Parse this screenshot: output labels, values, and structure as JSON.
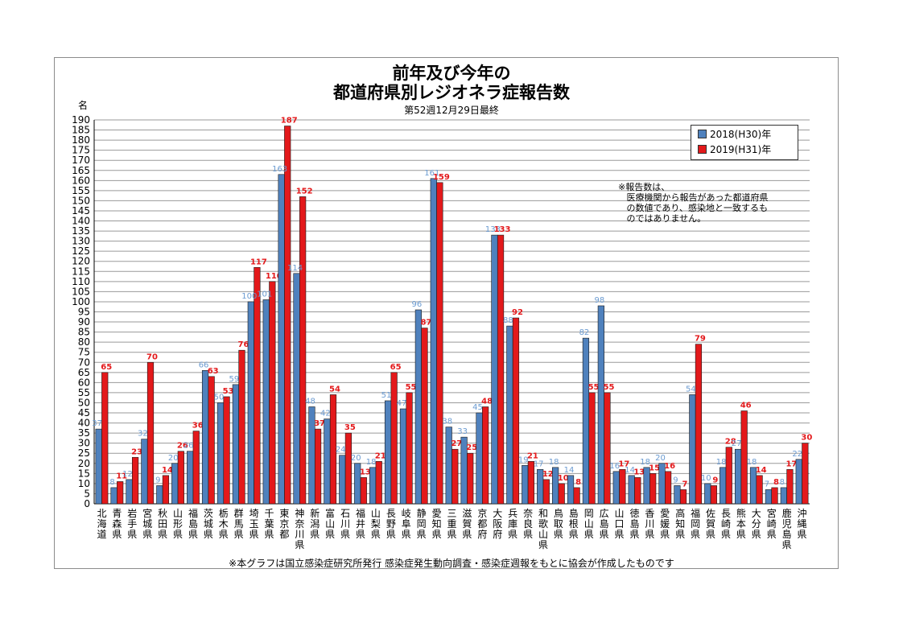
{
  "title_line1": "前年及び今年の",
  "title_line2": "都道府県別レジオネラ症報告数",
  "subtitle": "第52週12月29日最終",
  "unit_label": "名",
  "note": "※報告数は、\n   医療機関から報告があった都道府県\n   の数値であり、感染地と一致するも\n   のではありません。",
  "footer": "※本グラフは国立感染症研究所発行 感染症発生動向調査・感染症週報をもとに協会が作成したものです",
  "colors": {
    "series_2018": "#4f81bd",
    "series_2019": "#e3191b",
    "label_2018": "#6b9bd1",
    "label_2019": "#e3191b"
  },
  "chart_data": {
    "type": "bar",
    "ylim": [
      0,
      190
    ],
    "ytick_step": 5,
    "grid": true,
    "legend_position": "top-right",
    "categories": [
      "北海道",
      "青森県",
      "岩手県",
      "宮城県",
      "秋田県",
      "山形県",
      "福島県",
      "茨城県",
      "栃木県",
      "群馬県",
      "埼玉県",
      "千葉県",
      "東京都",
      "神奈川県",
      "新潟県",
      "富山県",
      "石川県",
      "福井県",
      "山梨県",
      "長野県",
      "岐阜県",
      "静岡県",
      "愛知県",
      "三重県",
      "滋賀県",
      "京都府",
      "大阪府",
      "兵庫県",
      "奈良県",
      "和歌山県",
      "鳥取県",
      "島根県",
      "岡山県",
      "広島県",
      "山口県",
      "徳島県",
      "香川県",
      "愛媛県",
      "高知県",
      "福岡県",
      "佐賀県",
      "長崎県",
      "熊本県",
      "大分県",
      "宮崎県",
      "鹿児島県",
      "沖縄県"
    ],
    "series": [
      {
        "name": "2018(H30)年",
        "values": [
          37,
          8,
          12,
          32,
          9,
          20,
          26,
          66,
          50,
          59,
          100,
          101,
          163,
          114,
          48,
          42,
          24,
          20,
          18,
          51,
          47,
          96,
          161,
          38,
          33,
          45,
          133,
          88,
          19,
          17,
          18,
          14,
          82,
          98,
          16,
          14,
          18,
          20,
          9,
          54,
          10,
          18,
          27,
          18,
          7,
          8,
          22
        ]
      },
      {
        "name": "2019(H31)年",
        "values": [
          65,
          11,
          23,
          70,
          14,
          26,
          36,
          63,
          53,
          76,
          117,
          110,
          187,
          152,
          37,
          54,
          35,
          13,
          21,
          65,
          55,
          87,
          159,
          27,
          25,
          48,
          133,
          92,
          21,
          12,
          10,
          8,
          55,
          55,
          17,
          13,
          15,
          16,
          7,
          79,
          9,
          28,
          46,
          14,
          8,
          17,
          30
        ]
      }
    ]
  }
}
